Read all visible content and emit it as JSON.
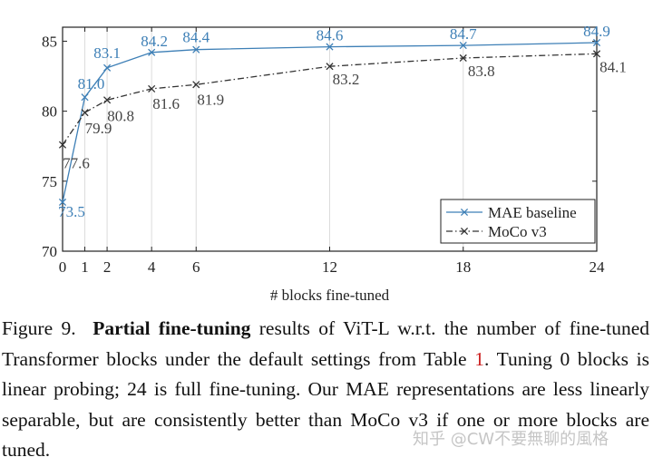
{
  "chart_data": {
    "type": "line",
    "xlabel": "# blocks fine-tuned",
    "ylabel": "",
    "x": [
      0,
      1,
      2,
      4,
      6,
      12,
      18,
      24
    ],
    "xticks": [
      "0",
      "1",
      "2",
      "4",
      "6",
      "12",
      "18",
      "24"
    ],
    "yticks": [
      "70",
      "75",
      "80",
      "85"
    ],
    "ylim": [
      70,
      86
    ],
    "grid": "vertical",
    "legend_position": "bottom-right",
    "series": [
      {
        "name": "MAE baseline",
        "style": "solid",
        "color": "#3d7fb6",
        "values": [
          73.5,
          81.0,
          83.1,
          84.2,
          84.4,
          84.6,
          84.7,
          84.9
        ],
        "labels": [
          "73.5",
          "81.0",
          "83.1",
          "84.2",
          "84.4",
          "84.6",
          "84.7",
          "84.9"
        ]
      },
      {
        "name": "MoCo v3",
        "style": "dash-dot",
        "color": "#333333",
        "values": [
          77.6,
          79.9,
          80.8,
          81.6,
          81.9,
          83.2,
          83.8,
          84.1
        ],
        "labels": [
          "77.6",
          "79.9",
          "80.8",
          "81.6",
          "81.9",
          "83.2",
          "83.8",
          "84.1"
        ]
      }
    ]
  },
  "caption": {
    "figure_label": "Figure 9.",
    "bold_title": "Partial fine-tuning",
    "text_1": " results of ViT-L w.r.t. the number of fine-tuned Transformer blocks under the default settings from Table ",
    "table_ref": "1",
    "text_2": ". Tuning 0 blocks is linear probing; 24 is full fine-tuning. Our MAE representations are less linearly separable, but are consistently better than MoCo v3 if one or more blocks are tuned."
  },
  "watermark": {
    "text": "知乎 @CW不要無聊的風格"
  }
}
